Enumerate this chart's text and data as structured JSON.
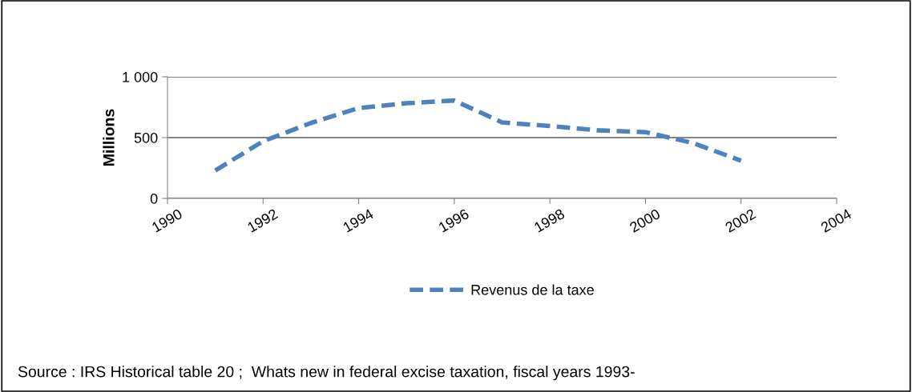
{
  "chart_data": {
    "type": "line",
    "ylabel": "Millions",
    "x": [
      1991,
      1992,
      1993,
      1994,
      1995,
      1996,
      1997,
      1998,
      1999,
      2000,
      2001,
      2002
    ],
    "series": [
      {
        "name": "Revenus de la taxe",
        "color": "#4f81bd",
        "values": [
          230,
          470,
          620,
          743,
          783,
          805,
          625,
          595,
          560,
          545,
          455,
          310
        ]
      }
    ],
    "xlim": [
      1990,
      2004
    ],
    "xticks": [
      1990,
      1992,
      1994,
      1996,
      1998,
      2000,
      2002,
      2004
    ],
    "ylim": [
      0,
      1000
    ],
    "yticks": [
      0,
      500,
      {
        "value": 1000,
        "label": "1 000"
      }
    ],
    "grid": "y",
    "legend": "bottom",
    "line_style": "dashed",
    "marker": "none",
    "annotations": [
      "Source : IRS Historical table 20 ;  Whats new in federal excise taxation, fiscal years 1993-"
    ]
  }
}
